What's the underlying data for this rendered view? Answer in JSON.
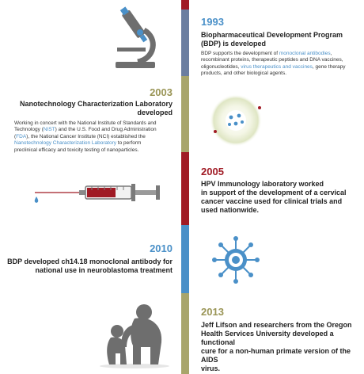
{
  "events": [
    {
      "year": "1993",
      "title_lines": [
        "Biopharmaceutical Development Program",
        "(BDP) is developed"
      ],
      "body": {
        "a": "BDP supports the development of ",
        "hl1": "monoclonal antibodies",
        "b": ",",
        "line2": "recombinant proteins, therapeutic peptides and DNA vaccines,",
        "c": "oligonucleotides, ",
        "hl2": "virus therapeutics and vaccines",
        "d": ", gene therapy",
        "line4": "products, and other biological agents."
      }
    },
    {
      "year": "2003",
      "title_lines": [
        "Nanotechnology Characterization Laboratory",
        "developed"
      ],
      "body": {
        "line1": "Working in concert with the National Institute of Standards and",
        "a": "Technology (",
        "hl1": "NIST",
        "b": ") and the U.S. Food and Drug Administration",
        "c": "(",
        "hl2": "FDA",
        "d": "), the National Cancer Institute (NCI) established the",
        "hl3": "Nanotechnology Characterization Laboratory",
        "e": " to perform",
        "line5": "preclinical efficacy and toxicity testing of nanoparticles."
      }
    },
    {
      "year": "2005",
      "lines": [
        "HPV Immunology laboratory worked",
        "in support of the development of a cervical",
        "cancer vaccine used for clinical trials and",
        "used nationwide."
      ]
    },
    {
      "year": "2010",
      "lines": [
        "BDP  developed ch14.18 monoclonal antibody for",
        "national use in neuroblastoma treatment"
      ]
    },
    {
      "year": "2013",
      "lines": [
        "Jeff Lifson and researchers from the Oregon",
        "Health Services University developed a functional",
        "cure for a non-human primate version of the AIDS",
        "virus."
      ]
    }
  ],
  "colors": {
    "blue": "#4a90c8",
    "olive": "#a8a56b",
    "red": "#a01a24",
    "slate": "#6b7ea0",
    "grey": "#6e6e6e"
  },
  "icons": [
    "microscope-icon",
    "nanoparticle-icon",
    "syringe-icon",
    "virus-icon",
    "primates-icon"
  ]
}
